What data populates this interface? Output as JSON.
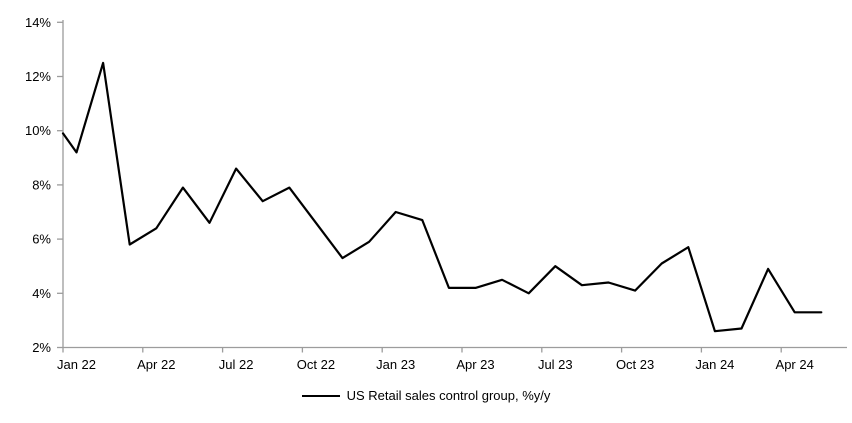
{
  "chart_data": {
    "type": "line",
    "title": "",
    "x": [
      "Dec 21",
      "Jan 22",
      "Feb 22",
      "Mar 22",
      "Apr 22",
      "May 22",
      "Jun 22",
      "Jul 22",
      "Aug 22",
      "Sep 22",
      "Oct 22",
      "Nov 22",
      "Dec 22",
      "Jan 23",
      "Feb 23",
      "Mar 23",
      "Apr 23",
      "May 23",
      "Jun 23",
      "Jul 23",
      "Aug 23",
      "Sep 23",
      "Oct 23",
      "Nov 23",
      "Dec 23",
      "Jan 24",
      "Feb 24",
      "Mar 24",
      "Apr 24",
      "May 24"
    ],
    "series": [
      {
        "name": "US Retail sales control group, %y/y",
        "values": [
          9.9,
          9.2,
          12.5,
          5.8,
          6.4,
          7.9,
          6.6,
          8.6,
          7.4,
          7.9,
          6.6,
          5.3,
          5.9,
          7.0,
          6.7,
          4.2,
          4.2,
          4.5,
          4.0,
          5.0,
          4.3,
          4.4,
          4.1,
          5.1,
          5.7,
          2.6,
          2.7,
          4.9,
          3.3,
          3.3
        ]
      }
    ],
    "note": "first point is clipped at the y-axis (line starts on the axis at ~9.9%)",
    "xlabel": "",
    "ylabel": "",
    "ylim": [
      2,
      14
    ],
    "y_tick_step": 2,
    "y_tick_labels": [
      "2%",
      "4%",
      "6%",
      "8%",
      "10%",
      "12%",
      "14%"
    ],
    "x_tick_labels": [
      "Jan 22",
      "Apr 22",
      "Jul 22",
      "Oct 22",
      "Jan 23",
      "Apr 23",
      "Jul 23",
      "Oct 23",
      "Jan 24",
      "Apr 24"
    ],
    "x_ticks_every_months": 3,
    "grid": "off",
    "legend_position": "bottom-center",
    "line_color": "#000000",
    "axis_color": "#9c9c9c",
    "text_color": "#000000",
    "background": "#ffffff"
  },
  "legend": {
    "label": "US Retail sales control group, %y/y"
  }
}
